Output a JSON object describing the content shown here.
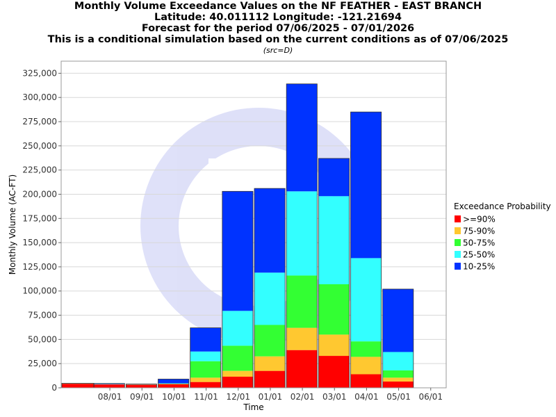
{
  "header": {
    "title_lines": [
      "Monthly Volume Exceedance Values on the NF FEATHER - EAST BRANCH",
      "Latitude: 40.011112 Longitude: -121.21694",
      "Forecast for the period 07/06/2025 - 07/01/2026",
      "This is a conditional simulation based on the current conditions as of 07/06/2025"
    ],
    "src_note": "(src=D)"
  },
  "chart_data": {
    "type": "bar",
    "stacked": true,
    "xlabel": "Time",
    "ylabel": "Monthly Volume (AC-FT)",
    "ylim": [
      0,
      337500
    ],
    "y_ticks": [
      0,
      25000,
      50000,
      75000,
      100000,
      125000,
      150000,
      175000,
      200000,
      225000,
      250000,
      275000,
      300000,
      325000
    ],
    "y_tick_labels": [
      "0",
      "25,000",
      "50,000",
      "75,000",
      "100,000",
      "125,000",
      "150,000",
      "175,000",
      "200,000",
      "225,000",
      "250,000",
      "275,000",
      "300,000",
      "325,000"
    ],
    "x_tick_labels": [
      "08/01",
      "09/01",
      "10/01",
      "11/01",
      "12/01",
      "01/01",
      "02/01",
      "03/01",
      "04/01",
      "05/01",
      "06/01"
    ],
    "grid": true,
    "legend": {
      "title": "Exceedance Probability",
      "placement": "right"
    },
    "series": [
      {
        "name": ">=90%",
        "color": "#ff0000",
        "values": [
          4200,
          3500,
          3200,
          3800,
          6000,
          11500,
          17500,
          39000,
          33000,
          14000,
          6500
        ]
      },
      {
        "name": "75-90%",
        "color": "#ffc830",
        "values": [
          200,
          150,
          150,
          200,
          4500,
          6000,
          15000,
          23000,
          22000,
          18000,
          4000
        ]
      },
      {
        "name": "50-75%",
        "color": "#33ff33",
        "values": [
          100,
          100,
          100,
          300,
          17000,
          26000,
          32500,
          54000,
          52000,
          16000,
          7500
        ]
      },
      {
        "name": "25-50%",
        "color": "#33ffff",
        "values": [
          100,
          150,
          100,
          300,
          10000,
          36000,
          54000,
          87000,
          91000,
          86000,
          19000
        ]
      },
      {
        "name": "10-25%",
        "color": "#0033ff",
        "values": [
          100,
          600,
          350,
          4400,
          24500,
          123500,
          87000,
          111000,
          39000,
          151000,
          65000
        ]
      }
    ]
  }
}
